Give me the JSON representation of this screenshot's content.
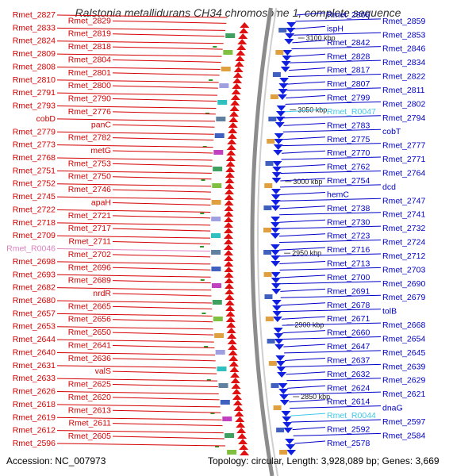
{
  "title": "Ralstonia metallidurans CH34 chromosome 1, complete sequence",
  "footer": {
    "accession": "Accession: NC_007973",
    "summary": "Topology: circular, Length: 3,928,089 bp; Genes: 3,669"
  },
  "colors": {
    "left_label": "#d40000",
    "right_label": "#0000c8",
    "rna_label_left": "#e080c0",
    "rna_label_right": "#40c8e8",
    "backbone": "#8c8c8c"
  },
  "scale_marks": [
    "3100 kbp",
    "3050 kbp",
    "3000 kbp",
    "2950 kbp",
    "2900 kbp",
    "2850 kbp"
  ],
  "left_labels": [
    "Rmet_2827",
    "Rmet_2829",
    "Rmet_2833",
    "Rmet_2819",
    "Rmet_2824",
    "Rmet_2818",
    "Rmet_2809",
    "Rmet_2804",
    "Rmet_2808",
    "Rmet_2801",
    "Rmet_2810",
    "Rmet_2800",
    "Rmet_2791",
    "Rmet_2790",
    "Rmet_2793",
    "Rmet_2776",
    "cobD",
    "panC",
    "Rmet_2779",
    "Rmet_2782",
    "Rmet_2773",
    "metG",
    "Rmet_2768",
    "Rmet_2753",
    "Rmet_2751",
    "Rmet_2750",
    "Rmet_2752",
    "Rmet_2746",
    "Rmet_2745",
    "apaH",
    "Rmet_2722",
    "Rmet_2721",
    "Rmet_2718",
    "Rmet_2717",
    "Rmet_2709",
    "Rmet_2711",
    "Rmet_R0046",
    "Rmet_2702",
    "Rmet_2698",
    "Rmet_2696",
    "Rmet_2693",
    "Rmet_2689",
    "Rmet_2682",
    "nrdR",
    "Rmet_2680",
    "Rmet_2665",
    "Rmet_2657",
    "Rmet_2656",
    "Rmet_2653",
    "Rmet_2650",
    "Rmet_2644",
    "Rmet_2641",
    "Rmet_2640",
    "Rmet_2636",
    "Rmet_2631",
    "valS",
    "Rmet_2633",
    "Rmet_2625",
    "Rmet_2626",
    "Rmet_2620",
    "Rmet_2618",
    "Rmet_2613",
    "Rmet_2619",
    "Rmet_2611",
    "Rmet_2612",
    "Rmet_2605",
    "Rmet_2596"
  ],
  "right_labels": [
    "Rmet_2866",
    "Rmet_2859",
    "ispH",
    "Rmet_2853",
    "Rmet_2842",
    "Rmet_2846",
    "Rmet_2828",
    "Rmet_2834",
    "Rmet_2817",
    "Rmet_2822",
    "Rmet_2807",
    "Rmet_2811",
    "Rmet_2799",
    "Rmet_2802",
    "Rmet_R0047",
    "Rmet_2794",
    "Rmet_2783",
    "cobT",
    "Rmet_2775",
    "Rmet_2777",
    "Rmet_2770",
    "Rmet_2771",
    "Rmet_2762",
    "Rmet_2764",
    "Rmet_2754",
    "dcd",
    "hemC",
    "Rmet_2747",
    "Rmet_2738",
    "Rmet_2741",
    "Rmet_2730",
    "Rmet_2732",
    "Rmet_2723",
    "Rmet_2724",
    "Rmet_2716",
    "Rmet_2712",
    "Rmet_2713",
    "Rmet_2703",
    "Rmet_2700",
    "Rmet_2690",
    "Rmet_2691",
    "Rmet_2679",
    "Rmet_2678",
    "tolB",
    "Rmet_2671",
    "Rmet_2668",
    "Rmet_2660",
    "Rmet_2654",
    "Rmet_2647",
    "Rmet_2645",
    "Rmet_2637",
    "Rmet_2639",
    "Rmet_2632",
    "Rmet_2629",
    "Rmet_2624",
    "Rmet_2621",
    "Rmet_2614",
    "dnaG",
    "Rmet_R0044",
    "Rmet_2597",
    "Rmet_2592",
    "Rmet_2584",
    "Rmet_2578"
  ]
}
